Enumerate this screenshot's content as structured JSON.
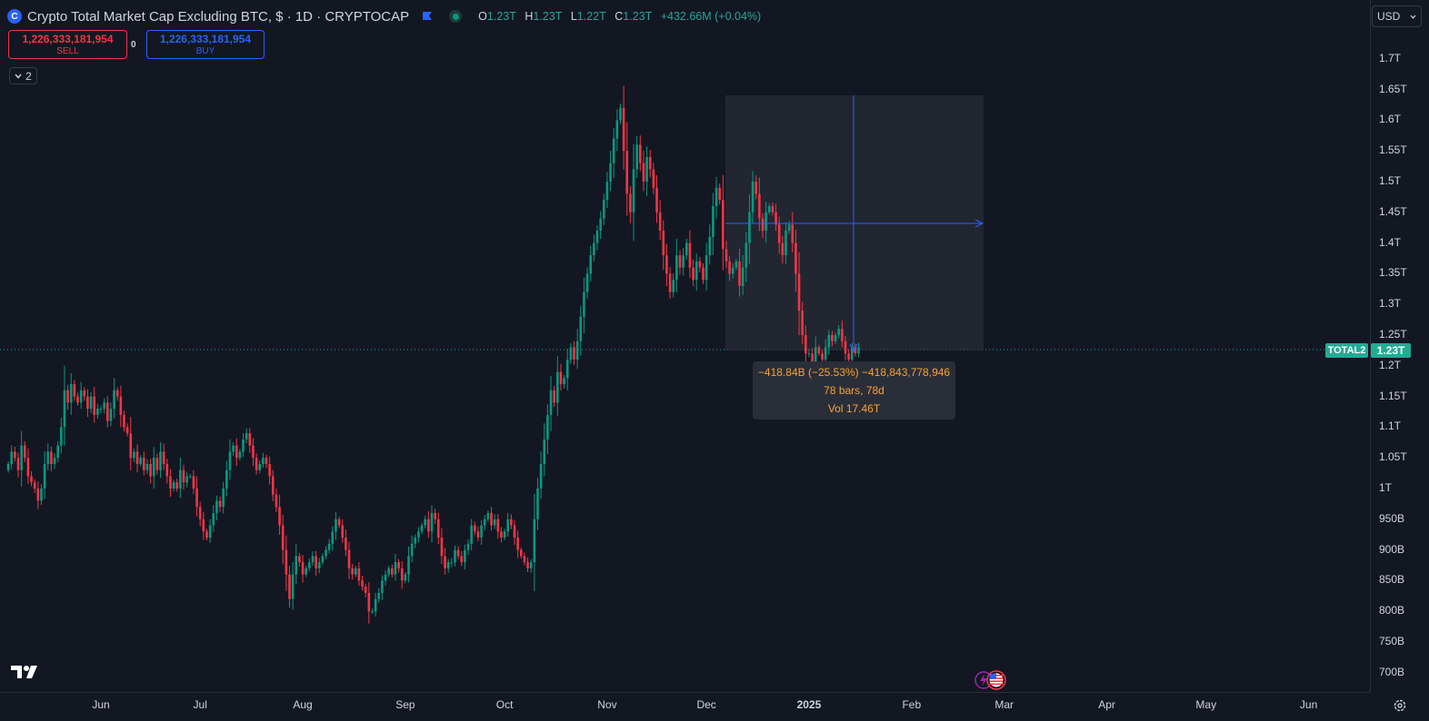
{
  "header": {
    "title": "Crypto Total Market Cap Excluding BTC, $ · 1D · CRYPTOCAP",
    "ohlc": [
      {
        "key": "O",
        "value": "1.23T"
      },
      {
        "key": "H",
        "value": "1.23T"
      },
      {
        "key": "L",
        "value": "1.22T"
      },
      {
        "key": "C",
        "value": "1.23T"
      }
    ],
    "change": "+432.66M (+0.04%)"
  },
  "trade": {
    "sell_price": "1,226,333,181,954",
    "sell_label": "SELL",
    "buy_price": "1,226,333,181,954",
    "buy_label": "BUY",
    "spread": "0"
  },
  "indicators_toggle": "2",
  "currency": "USD",
  "last_price": {
    "symbol": "TOTAL2",
    "value": "1.23T",
    "numeric": 1.23
  },
  "measure": {
    "line1": "−418.84B (−25.53%) −418,843,778,946",
    "line2": "78 bars, 78d",
    "line3": "Vol 17.46T"
  },
  "colors": {
    "up": "#089981",
    "down": "#f23645",
    "measure": "#2962ff",
    "accent": "#22ab94"
  },
  "chart_data": {
    "type": "candlestick",
    "title": "Crypto Total Market Cap Excluding BTC, $ · 1D · CRYPTOCAP",
    "y_unit": "USD (trillions)",
    "ylim": [
      0.68,
      1.74
    ],
    "y_ticks": [
      {
        "value": 1.7,
        "label": "1.7T"
      },
      {
        "value": 1.65,
        "label": "1.65T"
      },
      {
        "value": 1.6,
        "label": "1.6T"
      },
      {
        "value": 1.55,
        "label": "1.55T"
      },
      {
        "value": 1.5,
        "label": "1.5T"
      },
      {
        "value": 1.45,
        "label": "1.45T"
      },
      {
        "value": 1.4,
        "label": "1.4T"
      },
      {
        "value": 1.35,
        "label": "1.35T"
      },
      {
        "value": 1.3,
        "label": "1.3T"
      },
      {
        "value": 1.25,
        "label": "1.25T"
      },
      {
        "value": 1.2,
        "label": "1.2T"
      },
      {
        "value": 1.15,
        "label": "1.15T"
      },
      {
        "value": 1.1,
        "label": "1.1T"
      },
      {
        "value": 1.05,
        "label": "1.05T"
      },
      {
        "value": 1.0,
        "label": "1T"
      },
      {
        "value": 0.95,
        "label": "950B"
      },
      {
        "value": 0.9,
        "label": "900B"
      },
      {
        "value": 0.85,
        "label": "850B"
      },
      {
        "value": 0.8,
        "label": "800B"
      },
      {
        "value": 0.75,
        "label": "750B"
      },
      {
        "value": 0.7,
        "label": "700B"
      }
    ],
    "x_ticks": [
      {
        "day": 0,
        "label": "Jun"
      },
      {
        "day": 30,
        "label": "Jul"
      },
      {
        "day": 61,
        "label": "Aug"
      },
      {
        "day": 92,
        "label": "Sep"
      },
      {
        "day": 122,
        "label": "Oct"
      },
      {
        "day": 153,
        "label": "Nov"
      },
      {
        "day": 183,
        "label": "Dec"
      },
      {
        "day": 214,
        "label": "2025",
        "bold": true
      },
      {
        "day": 245,
        "label": "Feb"
      },
      {
        "day": 273,
        "label": "Mar"
      },
      {
        "day": 304,
        "label": "Apr"
      },
      {
        "day": 334,
        "label": "May"
      },
      {
        "day": 365,
        "label": "Jun"
      }
    ],
    "x_unit": "days since 2024-06-01",
    "start_day": -28,
    "closes": [
      1.04,
      1.06,
      1.05,
      1.03,
      1.07,
      1.05,
      1.02,
      1.01,
      1.0,
      0.98,
      1.0,
      1.04,
      1.06,
      1.04,
      1.05,
      1.07,
      1.1,
      1.16,
      1.14,
      1.17,
      1.15,
      1.14,
      1.16,
      1.15,
      1.13,
      1.15,
      1.12,
      1.13,
      1.13,
      1.14,
      1.11,
      1.13,
      1.16,
      1.15,
      1.12,
      1.1,
      1.09,
      1.05,
      1.06,
      1.04,
      1.05,
      1.03,
      1.04,
      1.02,
      1.05,
      1.03,
      1.06,
      1.04,
      1.02,
      1.0,
      1.01,
      1.0,
      1.03,
      1.01,
      1.02,
      1.02,
      1.0,
      0.97,
      0.95,
      0.93,
      0.92,
      0.94,
      0.96,
      0.98,
      0.97,
      1.0,
      1.03,
      1.06,
      1.07,
      1.05,
      1.06,
      1.08,
      1.09,
      1.07,
      1.05,
      1.03,
      1.04,
      1.05,
      1.04,
      1.02,
      0.99,
      0.97,
      0.94,
      0.9,
      0.86,
      0.82,
      0.86,
      0.89,
      0.88,
      0.86,
      0.87,
      0.88,
      0.89,
      0.87,
      0.88,
      0.89,
      0.9,
      0.91,
      0.93,
      0.95,
      0.94,
      0.92,
      0.9,
      0.87,
      0.86,
      0.87,
      0.85,
      0.84,
      0.83,
      0.8,
      0.8,
      0.82,
      0.83,
      0.85,
      0.86,
      0.87,
      0.86,
      0.88,
      0.87,
      0.85,
      0.86,
      0.89,
      0.91,
      0.92,
      0.93,
      0.94,
      0.95,
      0.93,
      0.96,
      0.95,
      0.92,
      0.89,
      0.87,
      0.88,
      0.88,
      0.9,
      0.89,
      0.88,
      0.9,
      0.91,
      0.94,
      0.93,
      0.92,
      0.94,
      0.95,
      0.96,
      0.94,
      0.95,
      0.93,
      0.92,
      0.93,
      0.95,
      0.94,
      0.92,
      0.9,
      0.89,
      0.88,
      0.87,
      0.88,
      0.95,
      1.0,
      1.04,
      1.08,
      1.12,
      1.16,
      1.14,
      1.19,
      1.17,
      1.18,
      1.21,
      1.23,
      1.21,
      1.24,
      1.28,
      1.32,
      1.35,
      1.38,
      1.4,
      1.42,
      1.44,
      1.47,
      1.5,
      1.53,
      1.57,
      1.6,
      1.62,
      1.55,
      1.48,
      1.45,
      1.52,
      1.56,
      1.53,
      1.5,
      1.54,
      1.52,
      1.49,
      1.45,
      1.42,
      1.38,
      1.35,
      1.32,
      1.34,
      1.38,
      1.36,
      1.38,
      1.4,
      1.36,
      1.34,
      1.37,
      1.36,
      1.34,
      1.38,
      1.41,
      1.46,
      1.49,
      1.47,
      1.39,
      1.37,
      1.35,
      1.36,
      1.37,
      1.33,
      1.36,
      1.4,
      1.45,
      1.5,
      1.48,
      1.44,
      1.42,
      1.45,
      1.46,
      1.45,
      1.43,
      1.4,
      1.38,
      1.42,
      1.43,
      1.4,
      1.35,
      1.29,
      1.25,
      1.22,
      1.22,
      1.2,
      1.23,
      1.22,
      1.21,
      1.23,
      1.25,
      1.24,
      1.25,
      1.26,
      1.24,
      1.22,
      1.21,
      1.23,
      1.22,
      1.23
    ],
    "measure_box": {
      "start_day": 183,
      "end_day": 261,
      "high": 1.64,
      "low": 1.22,
      "mid_value": 1.43
    }
  }
}
